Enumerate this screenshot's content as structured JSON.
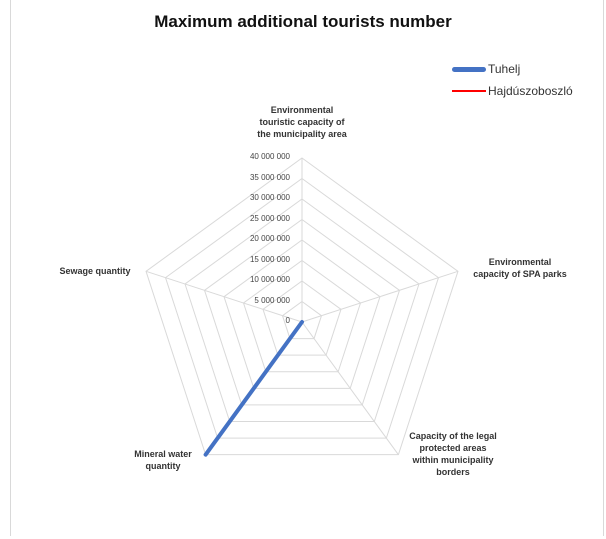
{
  "chart_data": {
    "type": "radar",
    "title": "Maximum additional tourists number",
    "axes": [
      "Environmental touristic capacity of the municipality area",
      "Environmental capacity of SPA parks",
      "Capacity of the legal protected areas within municipality borders",
      "Mineral water quantity",
      "Sewage quantity"
    ],
    "axis_label_lines": [
      [
        "Environmental",
        "touristic capacity of",
        "the municipality area"
      ],
      [
        "Environmental",
        "capacity of SPA parks"
      ],
      [
        "Capacity of the legal",
        "protected areas",
        "within municipality",
        "borders"
      ],
      [
        "Mineral water",
        "quantity"
      ],
      [
        "Sewage quantity"
      ]
    ],
    "ticks": [
      "0",
      "5 000 000",
      "10 000 000",
      "15 000 000",
      "20 000 000",
      "25 000 000",
      "30 000 000",
      "35 000 000",
      "40 000 000"
    ],
    "tick_values": [
      0,
      5000000,
      10000000,
      15000000,
      20000000,
      25000000,
      30000000,
      35000000,
      40000000
    ],
    "rmax": 40000000,
    "series": [
      {
        "name": "Tuhelj",
        "color": "#4472c4",
        "values": [
          0,
          0,
          0,
          40000000,
          0
        ]
      },
      {
        "name": "Hajdúszoboszló",
        "color": "#ff0000",
        "values": [
          0,
          0,
          0,
          0,
          0
        ]
      }
    ],
    "legend_position": "top-right",
    "grid": true
  }
}
